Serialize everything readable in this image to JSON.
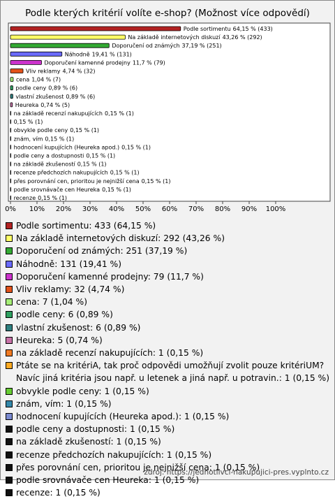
{
  "chart_data": {
    "type": "bar",
    "orientation": "horizontal",
    "title": "Podle kterých kritérií volíte e-shop? (Možnost více odpovědí)",
    "categories": [
      "Podle sortimentu",
      "Na základě internetových diskuzí",
      "Doporučení od známých",
      "Náhodně",
      "Doporučení kamenné prodejny",
      "Vliv reklamy",
      "cena",
      "podle ceny",
      "vlastní zkušenost",
      "Heureka",
      "na základě recenzí nakupujících",
      null,
      "obvykle podle ceny",
      "znám, vím",
      "hodnocení kupujících (Heureka apod.)",
      "podle ceny a dostupnosti",
      "na základě zkušeností",
      "recenze předchozích nakupujících",
      "přes porovnání cen, prioritou je nejnižší cena",
      "podle srovnávače cen Heureka",
      "recenze"
    ],
    "values": [
      64.15,
      43.26,
      37.19,
      19.41,
      11.7,
      4.74,
      1.04,
      0.89,
      0.89,
      0.74,
      0.15,
      0.15,
      0.15,
      0.15,
      0.15,
      0.15,
      0.15,
      0.15,
      0.15,
      0.15,
      0.15
    ],
    "value_labels": [
      "64,15 % (433)",
      "43,26 % (292)",
      "37,19 % (251)",
      "19,41 % (131)",
      "11,7 % (79)",
      "4,74 % (32)",
      "1,04 % (7)",
      "0,89 % (6)",
      "0,89 % (6)",
      "0,74 % (5)",
      "0,15 % (1)",
      "0,15 % (1)",
      "0,15 % (1)",
      "0,15 % (1)",
      "0,15 % (1)",
      "0,15 % (1)",
      "0,15 % (1)",
      "0,15 % (1)",
      "0,15 % (1)",
      "0,15 % (1)",
      "0,15 % (1)"
    ],
    "colors": [
      "#b22222",
      "#ffff66",
      "#33aa33",
      "#6a6aff",
      "#cc33cc",
      "#e2521a",
      "#a6ee77",
      "#2fa060",
      "#2e8080",
      "#c873a8",
      "#f07a22",
      "#ffaa22",
      "#66cc33",
      "#3388aa",
      "#7a8ad0",
      "#111111",
      "#111111",
      "#111111",
      "#111111",
      "#111111",
      "#111111"
    ],
    "legend": [
      "Podle sortimentu: 433 (64,15 %)",
      "Na základě internetových diskuzí: 292 (43,26 %)",
      "Doporučení od známých: 251 (37,19 %)",
      "Náhodně: 131 (19,41 %)",
      "Doporučení kamenné prodejny: 79 (11,7 %)",
      "Vliv reklamy: 32 (4,74 %)",
      "cena: 7 (1,04 %)",
      "podle ceny: 6 (0,89 %)",
      "vlastní zkušenost: 6 (0,89 %)",
      "Heureka: 5 (0,74 %)",
      "na základě recenzí nakupujících: 1 (0,15 %)",
      "Ptáte se na kritériA, tak proč odpovědi umožňují zvolit pouze kritériUM? Navíc jiná kritéria jsou např. u letenek a jiná např. u potravin.: 1 (0,15 %)",
      "obvykle podle ceny: 1 (0,15 %)",
      "znám, vím: 1 (0,15 %)",
      "hodnocení kupujících (Heureka apod.): 1 (0,15 %)",
      "podle ceny a dostupnosti: 1 (0,15 %)",
      "na základě zkušeností: 1 (0,15 %)",
      "recenze předchozích nakupujících: 1 (0,15 %)",
      "přes porovnání cen, prioritou je nejnižší cena: 1 (0,15 %)",
      "podle srovnávače cen Heureka: 1 (0,15 %)",
      "recenze: 1 (0,15 %)"
    ],
    "xlim": [
      0,
      120
    ],
    "xticks": [
      {
        "value": 0,
        "label": "0%"
      },
      {
        "value": 10,
        "label": "10%"
      },
      {
        "value": 20,
        "label": "20%"
      },
      {
        "value": 30,
        "label": "30%"
      },
      {
        "value": 40,
        "label": "40%"
      },
      {
        "value": 50,
        "label": "50%"
      },
      {
        "value": 60,
        "label": "60%"
      },
      {
        "value": 70,
        "label": "70%"
      },
      {
        "value": 80,
        "label": "80%"
      },
      {
        "value": 90,
        "label": "90%"
      },
      {
        "value": 100,
        "label": "100%"
      }
    ],
    "source": "zdroj: https://jednotlivci-nakupujici-pres.vyplnto.cz"
  }
}
